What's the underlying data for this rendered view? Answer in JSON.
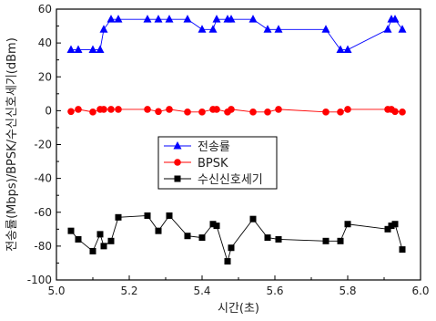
{
  "chart_data": {
    "type": "line",
    "xlabel": "시간(초)",
    "ylabel": "전송률(Mbps)/BPSK/수신신호세기(dBm)",
    "xlim": [
      5.0,
      6.0
    ],
    "ylim": [
      -100,
      60
    ],
    "xticks": [
      "5.0",
      "5.2",
      "5.4",
      "5.6",
      "5.8",
      "6.0"
    ],
    "yticks": [
      "-100",
      "-80",
      "-60",
      "-40",
      "-20",
      "0",
      "20",
      "40",
      "60"
    ],
    "grid": false,
    "legend_position": "center",
    "series": [
      {
        "name": "전송률",
        "color": "#0000ff",
        "marker": "triangle",
        "x": [
          5.04,
          5.06,
          5.1,
          5.12,
          5.13,
          5.15,
          5.17,
          5.25,
          5.28,
          5.31,
          5.36,
          5.4,
          5.43,
          5.44,
          5.47,
          5.48,
          5.54,
          5.58,
          5.61,
          5.74,
          5.78,
          5.8,
          5.91,
          5.92,
          5.93,
          5.95
        ],
        "y": [
          36,
          36,
          36,
          36,
          48,
          54,
          54,
          54,
          54,
          54,
          54,
          48,
          48,
          54,
          54,
          54,
          54,
          48,
          48,
          48,
          36,
          36,
          48,
          54,
          54,
          48
        ]
      },
      {
        "name": "BPSK",
        "color": "#ff0000",
        "marker": "circle",
        "x": [
          5.04,
          5.06,
          5.1,
          5.12,
          5.13,
          5.15,
          5.17,
          5.25,
          5.28,
          5.31,
          5.36,
          5.4,
          5.43,
          5.44,
          5.47,
          5.48,
          5.54,
          5.58,
          5.61,
          5.74,
          5.78,
          5.8,
          5.91,
          5.92,
          5.93,
          5.95
        ],
        "y": [
          -0.5,
          0.8,
          -0.8,
          0.8,
          0.8,
          0.8,
          0.8,
          0.8,
          -0.5,
          0.8,
          -0.8,
          -0.8,
          0.8,
          0.8,
          -0.8,
          0.8,
          -0.8,
          -0.8,
          0.8,
          -0.8,
          -0.8,
          0.8,
          0.8,
          0.8,
          -0.5,
          -0.8
        ]
      },
      {
        "name": "수신신호세기",
        "color": "#000000",
        "marker": "square",
        "x": [
          5.04,
          5.06,
          5.1,
          5.12,
          5.13,
          5.15,
          5.17,
          5.25,
          5.28,
          5.31,
          5.36,
          5.4,
          5.43,
          5.44,
          5.47,
          5.48,
          5.54,
          5.58,
          5.61,
          5.74,
          5.78,
          5.8,
          5.91,
          5.92,
          5.93,
          5.95
        ],
        "y": [
          -71,
          -76,
          -83,
          -73,
          -80,
          -77,
          -63,
          -62,
          -71,
          -62,
          -74,
          -75,
          -67,
          -68,
          -89,
          -81,
          -64,
          -75,
          -76,
          -77,
          -77,
          -67,
          -70,
          -68,
          -67,
          -82
        ]
      }
    ]
  }
}
